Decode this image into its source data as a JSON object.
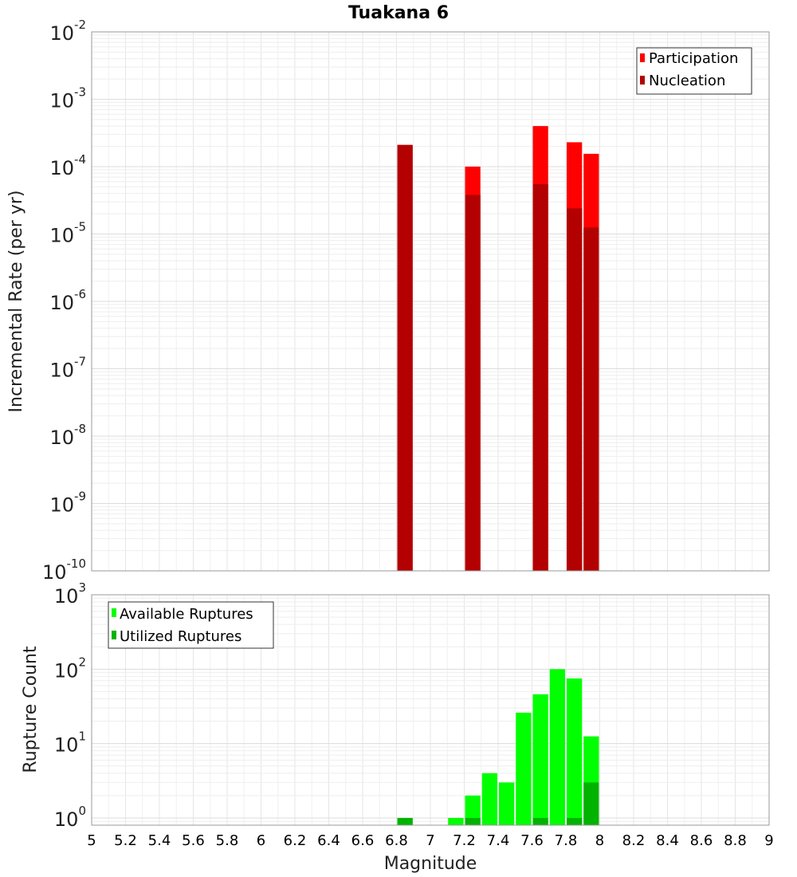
{
  "title": "Tuakana 6",
  "chart_data": [
    {
      "type": "bar",
      "title": "Tuakana 6",
      "xlabel": "Magnitude",
      "ylabel": "Incremental Rate (per yr)",
      "y_scale": "log",
      "ylim": [
        1e-10,
        0.01
      ],
      "xlim": [
        5,
        9
      ],
      "bin_width": 0.1,
      "y_ticks": [
        {
          "base": "10",
          "exp": "-10"
        },
        {
          "base": "10",
          "exp": "-9"
        },
        {
          "base": "10",
          "exp": "-8"
        },
        {
          "base": "10",
          "exp": "-7"
        },
        {
          "base": "10",
          "exp": "-6"
        },
        {
          "base": "10",
          "exp": "-5"
        },
        {
          "base": "10",
          "exp": "-4"
        },
        {
          "base": "10",
          "exp": "-3"
        },
        {
          "base": "10",
          "exp": "-2"
        }
      ],
      "legend": {
        "position": "top-right"
      },
      "grid": true,
      "series": [
        {
          "name": "Participation",
          "color": "#ff0000",
          "x": [
            6.85,
            7.25,
            7.65,
            7.85,
            7.95
          ],
          "values": [
            0.00021,
            0.0001,
            0.0004,
            0.00023,
            0.000155
          ]
        },
        {
          "name": "Nucleation",
          "color": "#b30000",
          "x": [
            6.85,
            7.25,
            7.65,
            7.85,
            7.95
          ],
          "values": [
            0.00021,
            3.8e-05,
            5.5e-05,
            2.4e-05,
            1.25e-05
          ]
        }
      ]
    },
    {
      "type": "bar",
      "xlabel": "Magnitude",
      "ylabel": "Rupture Count",
      "y_scale": "log",
      "ylim": [
        0.8,
        1000
      ],
      "xlim": [
        5,
        9
      ],
      "bin_width": 0.1,
      "y_ticks": [
        {
          "base": "10",
          "exp": "0"
        },
        {
          "base": "10",
          "exp": "1"
        },
        {
          "base": "10",
          "exp": "2"
        },
        {
          "base": "10",
          "exp": "3"
        }
      ],
      "x_ticks": [
        "5",
        "5.2",
        "5.4",
        "5.6",
        "5.8",
        "6",
        "6.2",
        "6.4",
        "6.6",
        "6.8",
        "7",
        "7.2",
        "7.4",
        "7.6",
        "7.8",
        "8",
        "8.2",
        "8.4",
        "8.6",
        "8.8",
        "9"
      ],
      "legend": {
        "position": "top-left"
      },
      "grid": true,
      "series": [
        {
          "name": "Available Ruptures",
          "color": "#00ff00",
          "x": [
            6.85,
            7.15,
            7.25,
            7.35,
            7.45,
            7.55,
            7.65,
            7.75,
            7.85,
            7.95
          ],
          "values": [
            1,
            1,
            2,
            4,
            3,
            26,
            46,
            100,
            75,
            12.5
          ]
        },
        {
          "name": "Utilized Ruptures",
          "color": "#00b300",
          "x": [
            6.85,
            7.25,
            7.65,
            7.85,
            7.95
          ],
          "values": [
            1,
            1,
            1,
            1,
            3
          ]
        }
      ]
    }
  ]
}
